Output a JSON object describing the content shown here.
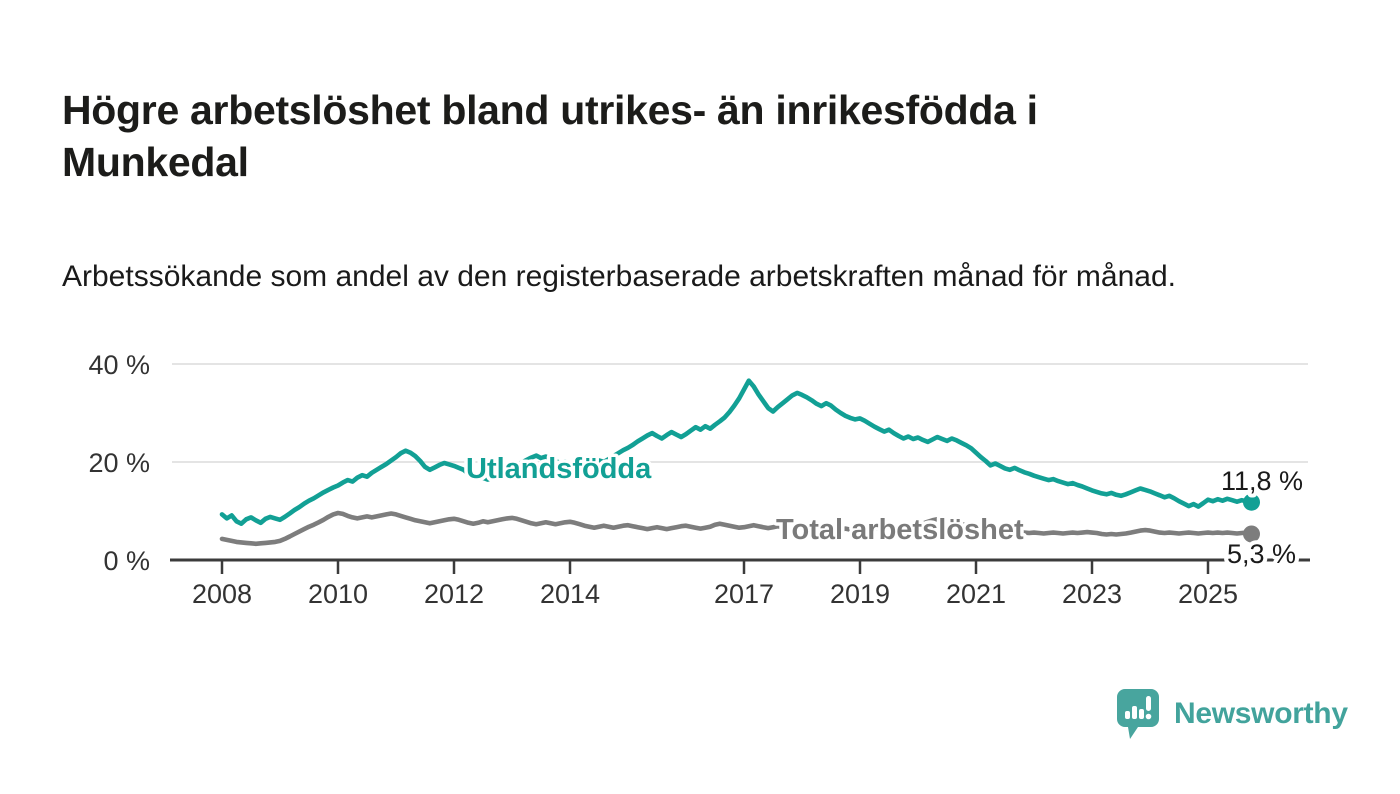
{
  "header": {
    "title": "Högre arbetslöshet bland utrikes- än inrikesfödda i Munkedal",
    "subtitle": "Arbetssökande som andel av den registerbaserade arbetskraften månad för månad."
  },
  "chart_data": {
    "type": "line",
    "x_unit": "monthly",
    "x_start": "2008-01",
    "x_end": "2025-10",
    "ylim": [
      0,
      44
    ],
    "grid": "horizontal",
    "y_axis": {
      "ticks": [
        {
          "value": 0,
          "label": "0 %"
        },
        {
          "value": 20,
          "label": "20 %"
        },
        {
          "value": 40,
          "label": "40 %"
        }
      ]
    },
    "x_axis": {
      "ticks": [
        2008,
        2010,
        2012,
        2014,
        2017,
        2019,
        2021,
        2023,
        2025
      ]
    },
    "series": [
      {
        "name": "Utlandsfödda",
        "color": "#12a095",
        "end_label": "11,8 %",
        "end_value": 11.8,
        "values": [
          9.3,
          8.5,
          9.1,
          7.9,
          7.4,
          8.3,
          8.7,
          8.1,
          7.6,
          8.4,
          8.8,
          8.5,
          8.2,
          8.8,
          9.5,
          10.2,
          10.8,
          11.5,
          12.1,
          12.6,
          13.2,
          13.8,
          14.3,
          14.8,
          15.2,
          15.8,
          16.3,
          16.0,
          16.8,
          17.3,
          17.0,
          17.8,
          18.4,
          19.0,
          19.6,
          20.3,
          21.0,
          21.8,
          22.3,
          21.9,
          21.2,
          20.2,
          19.0,
          18.4,
          18.9,
          19.4,
          19.8,
          19.5,
          19.2,
          18.8,
          18.4,
          17.6,
          16.9,
          16.5,
          16.8,
          16.4,
          16.9,
          17.4,
          17.9,
          18.3,
          18.7,
          19.3,
          19.9,
          20.4,
          20.9,
          21.3,
          20.8,
          21.1,
          20.6,
          20.2,
          19.8,
          20.1,
          19.7,
          19.3,
          19.6,
          19.1,
          19.4,
          19.8,
          20.3,
          20.0,
          20.6,
          21.2,
          21.8,
          22.4,
          22.9,
          23.5,
          24.2,
          24.8,
          25.4,
          25.9,
          25.3,
          24.8,
          25.5,
          26.1,
          25.6,
          25.1,
          25.7,
          26.4,
          27.1,
          26.6,
          27.3,
          26.8,
          27.6,
          28.3,
          29.1,
          30.2,
          31.5,
          33.0,
          34.8,
          36.6,
          35.4,
          33.8,
          32.4,
          31.0,
          30.3,
          31.2,
          32.0,
          32.8,
          33.6,
          34.1,
          33.7,
          33.2,
          32.6,
          31.9,
          31.4,
          32.0,
          31.5,
          30.7,
          30.0,
          29.4,
          29.0,
          28.7,
          28.9,
          28.4,
          27.8,
          27.2,
          26.7,
          26.2,
          26.6,
          25.9,
          25.3,
          24.8,
          25.2,
          24.7,
          25.0,
          24.5,
          24.1,
          24.6,
          25.1,
          24.7,
          24.3,
          24.8,
          24.4,
          23.9,
          23.4,
          22.8,
          21.9,
          21.0,
          20.2,
          19.3,
          19.7,
          19.2,
          18.7,
          18.4,
          18.8,
          18.3,
          17.9,
          17.6,
          17.2,
          16.9,
          16.6,
          16.3,
          16.5,
          16.1,
          15.8,
          15.5,
          15.7,
          15.3,
          15.0,
          14.6,
          14.2,
          13.9,
          13.6,
          13.4,
          13.7,
          13.3,
          13.1,
          13.4,
          13.8,
          14.2,
          14.6,
          14.3,
          14.0,
          13.6,
          13.2,
          12.8,
          13.1,
          12.6,
          12.0,
          11.5,
          11.0,
          11.4,
          10.9,
          11.6,
          12.3,
          12.0,
          12.4,
          12.1,
          12.5,
          12.2,
          11.9,
          12.2,
          12.0,
          11.8
        ]
      },
      {
        "name": "Total arbetslöshet",
        "color": "#7d7d7d",
        "end_label": "5,3 %",
        "end_value": 5.3,
        "values": [
          4.3,
          4.1,
          3.9,
          3.7,
          3.6,
          3.5,
          3.4,
          3.3,
          3.4,
          3.5,
          3.6,
          3.7,
          3.9,
          4.3,
          4.8,
          5.3,
          5.8,
          6.3,
          6.8,
          7.2,
          7.7,
          8.2,
          8.8,
          9.3,
          9.6,
          9.4,
          9.0,
          8.7,
          8.5,
          8.7,
          8.9,
          8.7,
          8.9,
          9.1,
          9.3,
          9.5,
          9.3,
          9.0,
          8.7,
          8.4,
          8.1,
          7.9,
          7.7,
          7.5,
          7.7,
          7.9,
          8.1,
          8.3,
          8.4,
          8.2,
          7.9,
          7.6,
          7.4,
          7.6,
          7.9,
          7.7,
          7.9,
          8.1,
          8.3,
          8.5,
          8.6,
          8.4,
          8.1,
          7.8,
          7.5,
          7.3,
          7.5,
          7.7,
          7.5,
          7.3,
          7.5,
          7.7,
          7.8,
          7.6,
          7.3,
          7.0,
          6.8,
          6.6,
          6.8,
          7.0,
          6.8,
          6.6,
          6.8,
          7.0,
          7.1,
          6.9,
          6.7,
          6.5,
          6.3,
          6.5,
          6.7,
          6.5,
          6.3,
          6.5,
          6.7,
          6.9,
          7.0,
          6.8,
          6.6,
          6.4,
          6.6,
          6.8,
          7.2,
          7.4,
          7.2,
          7.0,
          6.8,
          6.6,
          6.7,
          6.9,
          7.1,
          6.9,
          6.7,
          6.5,
          6.7,
          6.9,
          6.7,
          6.5,
          6.3,
          6.5,
          6.6,
          6.4,
          6.2,
          6.0,
          6.2,
          6.4,
          6.2,
          6.0,
          6.2,
          6.4,
          6.2,
          6.4,
          6.5,
          6.3,
          6.1,
          6.3,
          6.5,
          6.3,
          6.5,
          6.7,
          6.5,
          6.7,
          6.9,
          7.1,
          7.2,
          7.4,
          7.8,
          8.1,
          8.3,
          8.1,
          7.9,
          7.7,
          7.5,
          7.3,
          7.1,
          6.9,
          6.8,
          6.6,
          6.4,
          6.2,
          6.0,
          5.9,
          5.8,
          5.7,
          5.8,
          5.7,
          5.6,
          5.5,
          5.6,
          5.5,
          5.4,
          5.5,
          5.6,
          5.5,
          5.4,
          5.5,
          5.6,
          5.5,
          5.6,
          5.7,
          5.6,
          5.5,
          5.3,
          5.2,
          5.3,
          5.2,
          5.3,
          5.4,
          5.6,
          5.8,
          6.0,
          6.1,
          6.0,
          5.8,
          5.6,
          5.5,
          5.6,
          5.5,
          5.4,
          5.5,
          5.6,
          5.5,
          5.4,
          5.5,
          5.6,
          5.5,
          5.6,
          5.5,
          5.6,
          5.5,
          5.4,
          5.5,
          5.6,
          5.3
        ]
      }
    ],
    "colors": {
      "gridline": "#dbdbdb",
      "axis": "#3b3b3b",
      "tick_text": "#333333"
    }
  },
  "footer": {
    "brand": "Newsworthy",
    "brand_color": "#48a59e",
    "logo_icon": "speech-bubble-bar-chart-icon"
  }
}
